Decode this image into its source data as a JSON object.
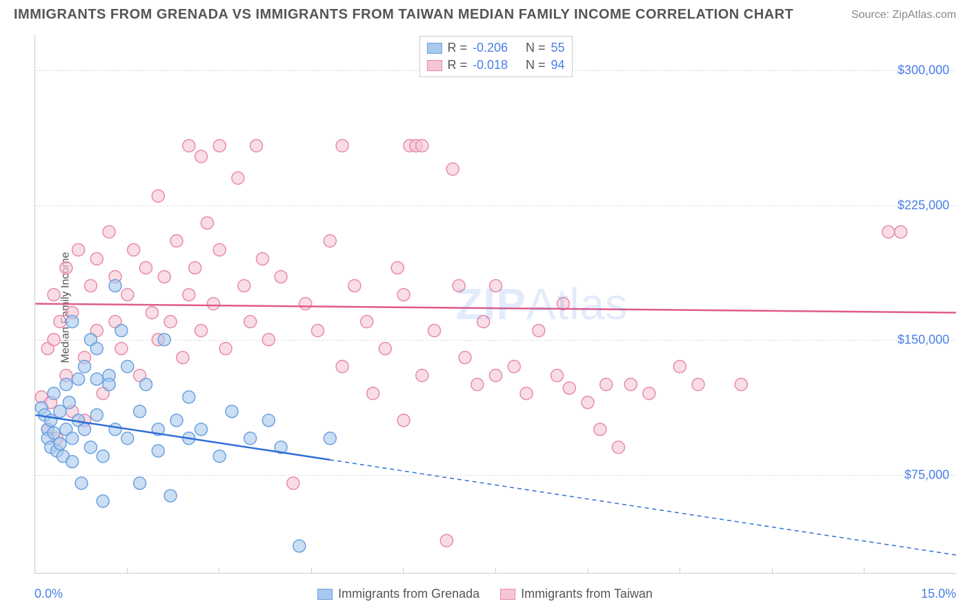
{
  "title": "IMMIGRANTS FROM GRENADA VS IMMIGRANTS FROM TAIWAN MEDIAN FAMILY INCOME CORRELATION CHART",
  "source": "Source: ZipAtlas.com",
  "watermark": {
    "bold": "ZIP",
    "light": "Atlas"
  },
  "chart": {
    "type": "scatter",
    "ylabel": "Median Family Income",
    "xlim": [
      0,
      15
    ],
    "ylim": [
      20000,
      320000
    ],
    "xticks": [
      0,
      15
    ],
    "xtick_labels": [
      "0.0%",
      "15.0%"
    ],
    "xtick_marks_at": [
      1.5,
      3.0,
      4.5,
      6.0,
      7.5,
      9.0,
      10.5,
      12.0,
      13.5
    ],
    "yticks": [
      75000,
      150000,
      225000,
      300000
    ],
    "ytick_labels": [
      "$75,000",
      "$150,000",
      "$225,000",
      "$300,000"
    ],
    "grid_color": "#dddddd",
    "background_color": "#ffffff",
    "marker_radius": 9,
    "marker_stroke_width": 1.5,
    "line_width": 2.5,
    "series": [
      {
        "name": "Immigrants from Grenada",
        "color_fill": "#a8c8ed",
        "color_stroke": "#6aa0e0",
        "line_color": "#2e6fd6",
        "R": "-0.206",
        "N": "55",
        "trend": {
          "x1": 0,
          "y1": 108000,
          "x2": 15,
          "y2": 30000,
          "solid_until_x": 4.8
        },
        "points": [
          [
            0.1,
            112000
          ],
          [
            0.15,
            108000
          ],
          [
            0.2,
            100000
          ],
          [
            0.2,
            95000
          ],
          [
            0.25,
            105000
          ],
          [
            0.25,
            90000
          ],
          [
            0.3,
            120000
          ],
          [
            0.3,
            98000
          ],
          [
            0.35,
            88000
          ],
          [
            0.4,
            110000
          ],
          [
            0.4,
            92000
          ],
          [
            0.45,
            85000
          ],
          [
            0.5,
            125000
          ],
          [
            0.5,
            100000
          ],
          [
            0.55,
            115000
          ],
          [
            0.6,
            160000
          ],
          [
            0.6,
            95000
          ],
          [
            0.6,
            82000
          ],
          [
            0.7,
            128000
          ],
          [
            0.7,
            105000
          ],
          [
            0.75,
            70000
          ],
          [
            0.8,
            135000
          ],
          [
            0.8,
            100000
          ],
          [
            0.9,
            150000
          ],
          [
            0.9,
            90000
          ],
          [
            1.0,
            145000
          ],
          [
            1.0,
            128000
          ],
          [
            1.0,
            108000
          ],
          [
            1.1,
            85000
          ],
          [
            1.1,
            60000
          ],
          [
            1.2,
            130000
          ],
          [
            1.2,
            125000
          ],
          [
            1.3,
            180000
          ],
          [
            1.3,
            100000
          ],
          [
            1.4,
            155000
          ],
          [
            1.5,
            135000
          ],
          [
            1.5,
            95000
          ],
          [
            1.7,
            110000
          ],
          [
            1.7,
            70000
          ],
          [
            1.8,
            125000
          ],
          [
            2.0,
            100000
          ],
          [
            2.0,
            88000
          ],
          [
            2.1,
            150000
          ],
          [
            2.2,
            63000
          ],
          [
            2.3,
            105000
          ],
          [
            2.5,
            95000
          ],
          [
            2.5,
            118000
          ],
          [
            2.7,
            100000
          ],
          [
            3.0,
            85000
          ],
          [
            3.2,
            110000
          ],
          [
            3.5,
            95000
          ],
          [
            3.8,
            105000
          ],
          [
            4.0,
            90000
          ],
          [
            4.3,
            35000
          ],
          [
            4.8,
            95000
          ]
        ]
      },
      {
        "name": "Immigrants from Taiwan",
        "color_fill": "#f5c6d4",
        "color_stroke": "#e88aa8",
        "line_color": "#e05a8c",
        "R": "-0.018",
        "N": "94",
        "trend": {
          "x1": 0,
          "y1": 170000,
          "x2": 15,
          "y2": 165000,
          "solid_until_x": 15
        },
        "points": [
          [
            0.1,
            118000
          ],
          [
            0.2,
            145000
          ],
          [
            0.2,
            100000
          ],
          [
            0.25,
            115000
          ],
          [
            0.3,
            175000
          ],
          [
            0.3,
            150000
          ],
          [
            0.35,
            95000
          ],
          [
            0.4,
            160000
          ],
          [
            0.5,
            190000
          ],
          [
            0.5,
            130000
          ],
          [
            0.6,
            165000
          ],
          [
            0.6,
            110000
          ],
          [
            0.7,
            200000
          ],
          [
            0.8,
            140000
          ],
          [
            0.8,
            105000
          ],
          [
            0.9,
            180000
          ],
          [
            1.0,
            155000
          ],
          [
            1.0,
            195000
          ],
          [
            1.1,
            120000
          ],
          [
            1.2,
            210000
          ],
          [
            1.3,
            160000
          ],
          [
            1.3,
            185000
          ],
          [
            1.4,
            145000
          ],
          [
            1.5,
            175000
          ],
          [
            1.6,
            200000
          ],
          [
            1.7,
            130000
          ],
          [
            1.8,
            190000
          ],
          [
            1.9,
            165000
          ],
          [
            2.0,
            230000
          ],
          [
            2.0,
            150000
          ],
          [
            2.1,
            185000
          ],
          [
            2.2,
            160000
          ],
          [
            2.3,
            205000
          ],
          [
            2.4,
            140000
          ],
          [
            2.5,
            258000
          ],
          [
            2.5,
            175000
          ],
          [
            2.6,
            190000
          ],
          [
            2.7,
            155000
          ],
          [
            2.7,
            252000
          ],
          [
            2.8,
            215000
          ],
          [
            2.9,
            170000
          ],
          [
            3.0,
            200000
          ],
          [
            3.0,
            258000
          ],
          [
            3.1,
            145000
          ],
          [
            3.3,
            240000
          ],
          [
            3.4,
            180000
          ],
          [
            3.5,
            160000
          ],
          [
            3.6,
            258000
          ],
          [
            3.7,
            195000
          ],
          [
            3.8,
            150000
          ],
          [
            4.0,
            185000
          ],
          [
            4.2,
            70000
          ],
          [
            4.4,
            170000
          ],
          [
            4.6,
            155000
          ],
          [
            4.8,
            205000
          ],
          [
            5.0,
            258000
          ],
          [
            5.0,
            135000
          ],
          [
            5.2,
            180000
          ],
          [
            5.4,
            160000
          ],
          [
            5.5,
            120000
          ],
          [
            5.7,
            145000
          ],
          [
            5.9,
            190000
          ],
          [
            6.0,
            105000
          ],
          [
            6.0,
            175000
          ],
          [
            6.1,
            258000
          ],
          [
            6.2,
            258000
          ],
          [
            6.3,
            258000
          ],
          [
            6.3,
            130000
          ],
          [
            6.5,
            155000
          ],
          [
            6.7,
            38000
          ],
          [
            6.8,
            245000
          ],
          [
            6.9,
            180000
          ],
          [
            7.0,
            140000
          ],
          [
            7.2,
            125000
          ],
          [
            7.3,
            160000
          ],
          [
            7.5,
            130000
          ],
          [
            7.5,
            180000
          ],
          [
            7.8,
            135000
          ],
          [
            8.0,
            120000
          ],
          [
            8.2,
            155000
          ],
          [
            8.5,
            130000
          ],
          [
            8.6,
            170000
          ],
          [
            8.7,
            123000
          ],
          [
            9.0,
            115000
          ],
          [
            9.2,
            100000
          ],
          [
            9.3,
            125000
          ],
          [
            9.5,
            90000
          ],
          [
            9.7,
            125000
          ],
          [
            10.0,
            120000
          ],
          [
            10.5,
            135000
          ],
          [
            10.8,
            125000
          ],
          [
            11.5,
            125000
          ],
          [
            13.9,
            210000
          ],
          [
            14.1,
            210000
          ]
        ]
      }
    ]
  }
}
